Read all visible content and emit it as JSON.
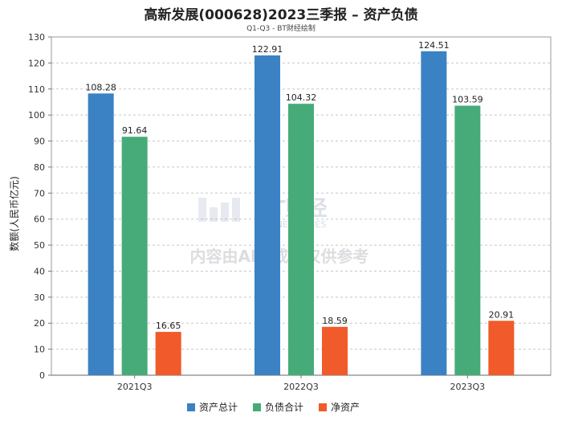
{
  "chart_data": {
    "type": "bar",
    "title": "高新发展(000628)2023三季报 – 资产负债",
    "subtitle": "Q1-Q3 - BT财经绘制",
    "categories": [
      "2021Q3",
      "2022Q3",
      "2023Q3"
    ],
    "series": [
      {
        "name": "资产总计",
        "color": "#3a82c4",
        "values": [
          108.28,
          122.91,
          124.51
        ]
      },
      {
        "name": "负债合计",
        "color": "#46ab78",
        "values": [
          91.64,
          104.32,
          103.59
        ]
      },
      {
        "name": "净资产",
        "color": "#f15a2b",
        "values": [
          16.65,
          18.59,
          20.91
        ]
      }
    ],
    "xlabel": "",
    "ylabel": "数额(人民币亿元)",
    "ylim": [
      0,
      130
    ],
    "yticks": [
      0,
      10,
      20,
      30,
      40,
      50,
      60,
      70,
      80,
      90,
      100,
      110,
      120,
      130
    ],
    "grid": true,
    "legend_position": "bottom-center"
  },
  "watermark": {
    "brand": "BT财经",
    "brand_sub": "BUSINESSTIMES",
    "notice": "内容由AI生成，仅供参考"
  }
}
